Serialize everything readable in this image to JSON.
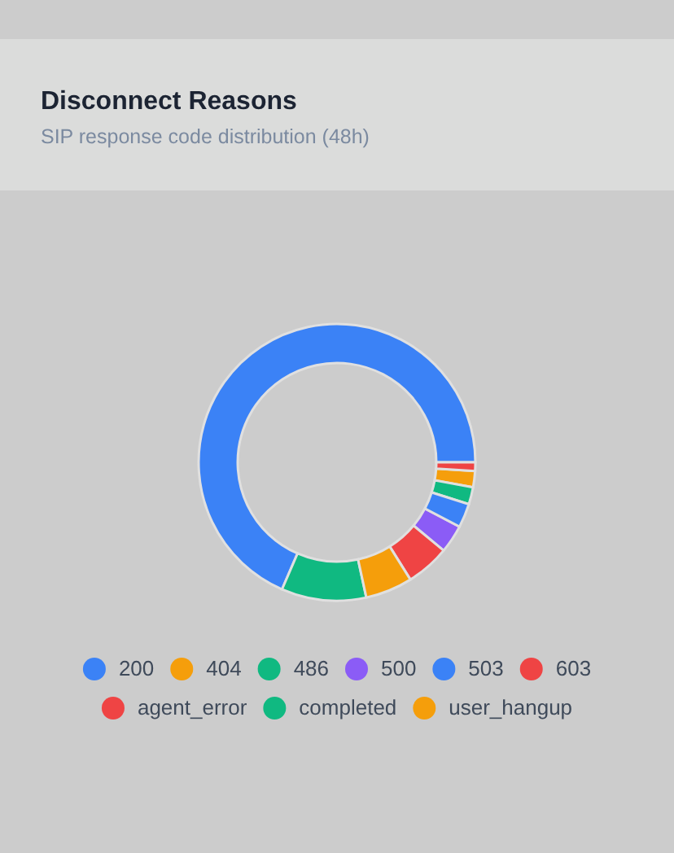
{
  "chart_data": {
    "type": "donut",
    "title": "Disconnect Reasons",
    "subtitle": "SIP response code distribution (48h)",
    "categories": [
      "200",
      "404",
      "486",
      "500",
      "503",
      "603",
      "agent_error",
      "completed",
      "user_hangup"
    ],
    "values": [
      68.5,
      1.9,
      2.0,
      3.3,
      2.8,
      1.0,
      5.1,
      9.9,
      5.5
    ],
    "colors": [
      "#3b82f6",
      "#f59e0b",
      "#10b981",
      "#8b5cf6",
      "#3b82f6",
      "#ef4444",
      "#ef4444",
      "#10b981",
      "#f59e0b"
    ],
    "legend": "bottom"
  }
}
